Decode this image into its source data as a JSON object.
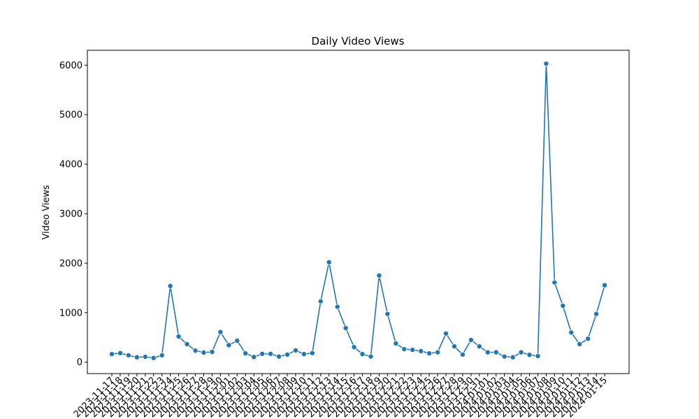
{
  "chart_data": {
    "type": "line",
    "title": "Daily Video Views",
    "xlabel": "",
    "ylabel": "Video Views",
    "ylim": [
      -230,
      6300
    ],
    "yticks": [
      0,
      1000,
      2000,
      3000,
      4000,
      5000,
      6000
    ],
    "grid": false,
    "marker": "circle",
    "series_color": "#1f77b4",
    "x": [
      "2023-11-17",
      "2023-11-18",
      "2023-11-19",
      "2023-11-20",
      "2023-11-21",
      "2023-11-22",
      "2023-11-23",
      "2023-11-24",
      "2023-11-25",
      "2023-11-26",
      "2023-11-27",
      "2023-11-28",
      "2023-11-29",
      "2023-11-30",
      "2023-12-01",
      "2023-12-02",
      "2023-12-03",
      "2023-12-04",
      "2023-12-05",
      "2023-12-06",
      "2023-12-07",
      "2023-12-08",
      "2023-12-09",
      "2023-12-10",
      "2023-12-11",
      "2023-12-12",
      "2023-12-13",
      "2023-12-14",
      "2023-12-15",
      "2023-12-16",
      "2023-12-17",
      "2023-12-18",
      "2023-12-19",
      "2023-12-20",
      "2023-12-21",
      "2023-12-22",
      "2023-12-23",
      "2023-12-24",
      "2023-12-25",
      "2023-12-26",
      "2023-12-27",
      "2023-12-28",
      "2023-12-29",
      "2023-12-30",
      "2023-12-31",
      "2024-01-01",
      "2024-01-02",
      "2024-01-03",
      "2024-01-04",
      "2024-01-05",
      "2024-01-06",
      "2024-01-07",
      "2024-01-08",
      "2024-01-09",
      "2024-01-10",
      "2024-01-11",
      "2024-01-12",
      "2024-01-13",
      "2024-01-14",
      "2024-01-15"
    ],
    "y": [
      165,
      185,
      140,
      100,
      110,
      85,
      140,
      1540,
      520,
      365,
      235,
      195,
      210,
      610,
      345,
      435,
      180,
      105,
      170,
      170,
      115,
      155,
      240,
      165,
      185,
      1230,
      2020,
      1120,
      690,
      305,
      165,
      115,
      1750,
      975,
      380,
      265,
      250,
      225,
      180,
      200,
      580,
      320,
      155,
      450,
      320,
      200,
      200,
      115,
      100,
      200,
      150,
      125,
      6030,
      1610,
      1140,
      600,
      365,
      475,
      975,
      1555
    ]
  }
}
